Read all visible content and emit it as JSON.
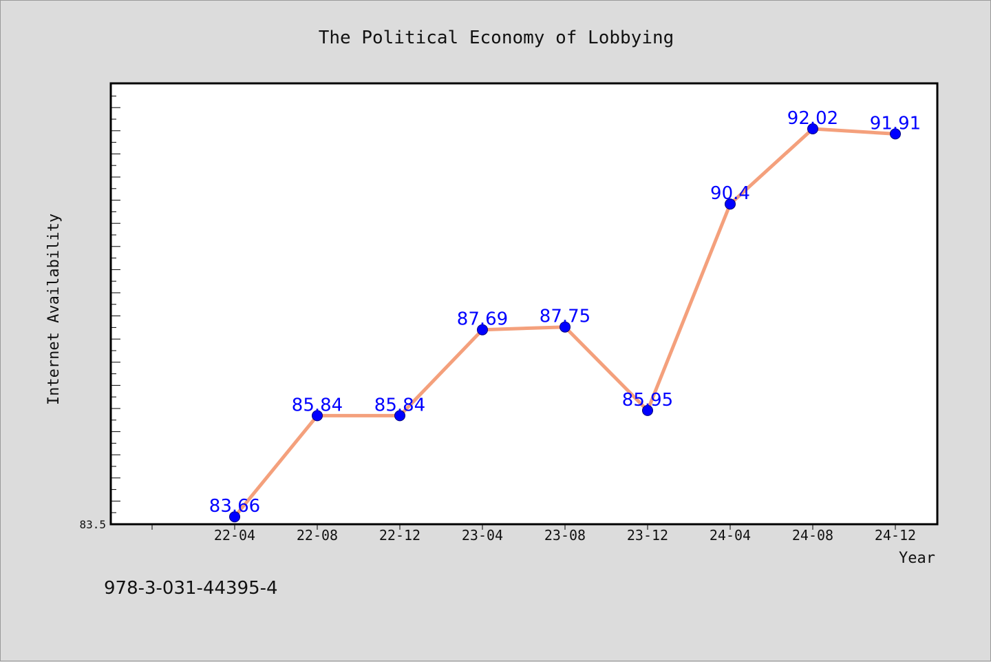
{
  "chart_data": {
    "type": "line",
    "title": "The Political Economy of Lobbying",
    "xlabel": "Year",
    "ylabel": "Internet Availability",
    "categories": [
      "22-04",
      "22-08",
      "22-12",
      "23-04",
      "23-08",
      "23-12",
      "24-04",
      "24-08",
      "24-12"
    ],
    "series": [
      {
        "values": [
          83.66,
          85.84,
          85.84,
          87.69,
          87.75,
          85.95,
          90.4,
          92.02,
          91.91
        ],
        "labels": [
          "83.66",
          "85.84",
          "85.84",
          "87.69",
          "87.75",
          "85.95",
          "90.4",
          "92.02",
          "91.91"
        ],
        "line_color": "#f4a07c",
        "marker_color": "#0000ff"
      }
    ],
    "ylim": [
      83.5,
      93.0
    ],
    "y_tick_labels": [
      "83.5"
    ],
    "grid": false,
    "legend": "none"
  },
  "footer": {
    "isbn": "978-3-031-44395-4"
  },
  "colors": {
    "background": "#dcdcdc",
    "plot_background": "#ffffff",
    "line": "#f4a07c",
    "marker": "#0000ff",
    "data_label": "#0000ff"
  }
}
